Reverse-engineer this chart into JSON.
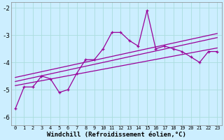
{
  "xlabel": "Windchill (Refroidissement éolien,°C)",
  "bg_color": "#cceeff",
  "line_color": "#990099",
  "grid_color": "#aadddd",
  "x_values": [
    0,
    1,
    2,
    3,
    4,
    5,
    6,
    7,
    8,
    9,
    10,
    11,
    12,
    13,
    14,
    15,
    16,
    17,
    18,
    19,
    20,
    21,
    22,
    23
  ],
  "scatter_y": [
    -5.7,
    -4.9,
    -4.9,
    -4.5,
    -4.6,
    -5.1,
    -5.0,
    -4.4,
    -3.9,
    -3.9,
    -3.5,
    -2.9,
    -2.9,
    -3.2,
    -3.4,
    -2.1,
    -3.5,
    -3.4,
    -3.5,
    -3.6,
    -3.8,
    -4.0,
    -3.6,
    -3.6
  ],
  "reg_line1": [
    -4.55,
    -4.48,
    -4.41,
    -4.34,
    -4.27,
    -4.2,
    -4.13,
    -4.06,
    -3.99,
    -3.92,
    -3.85,
    -3.78,
    -3.71,
    -3.64,
    -3.57,
    -3.5,
    -3.43,
    -3.36,
    -3.29,
    -3.22,
    -3.15,
    -3.08,
    -3.01,
    -2.94
  ],
  "reg_line2": [
    -4.7,
    -4.63,
    -4.56,
    -4.49,
    -4.42,
    -4.35,
    -4.28,
    -4.21,
    -4.14,
    -4.07,
    -4.0,
    -3.93,
    -3.86,
    -3.79,
    -3.72,
    -3.65,
    -3.58,
    -3.51,
    -3.44,
    -3.37,
    -3.3,
    -3.23,
    -3.16,
    -3.09
  ],
  "reg_line3": [
    -4.85,
    -4.79,
    -4.73,
    -4.67,
    -4.61,
    -4.55,
    -4.49,
    -4.43,
    -4.37,
    -4.31,
    -4.25,
    -4.19,
    -4.13,
    -4.07,
    -4.01,
    -3.95,
    -3.89,
    -3.83,
    -3.77,
    -3.71,
    -3.65,
    -3.59,
    -3.53,
    -3.47
  ],
  "ylim": [
    -6.3,
    -1.8
  ],
  "yticks": [
    -6,
    -5,
    -4,
    -3,
    -2
  ],
  "xlim": [
    -0.5,
    23.5
  ]
}
